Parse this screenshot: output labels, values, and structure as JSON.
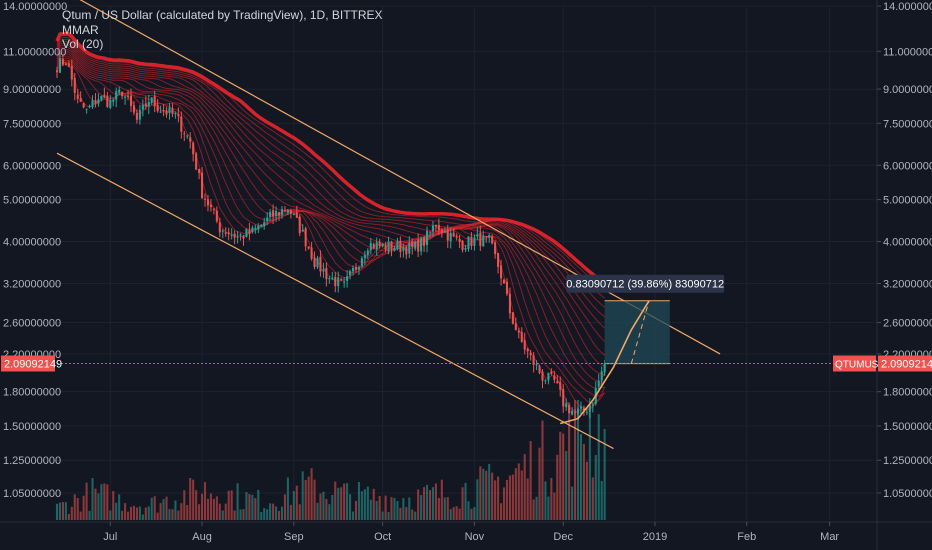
{
  "header": {
    "title": "Qtum / US Dollar (calculated by TradingView), 1D, BITTREX",
    "indicator_1": "MMAR",
    "indicator_2": "Vol (20)"
  },
  "colors": {
    "background": "#131722",
    "up_candle": "#26a69a",
    "down_candle": "#ef5350",
    "ribbon": "#e0242c",
    "trendline": "#f0a868",
    "measure_box": "#1f4a56",
    "price_line": "#ef5350",
    "label_bg": "#2a3347"
  },
  "chart_data": {
    "type": "candlestick",
    "symbol": "QTUMUSD",
    "last_price": "2.09092149",
    "y_scale": "log",
    "ylim": [
      0.9,
      14.0
    ],
    "y_ticks": [
      "14.00000000",
      "11.00000000",
      "9.00000000",
      "7.50000000",
      "6.00000000",
      "5.00000000",
      "4.00000000",
      "3.20000000",
      "2.60000000",
      "2.20000000",
      "1.80000000",
      "1.50000000",
      "1.25000000",
      "1.05000000"
    ],
    "y_tick_values": [
      14,
      11,
      9,
      7.5,
      6,
      5,
      4,
      3.2,
      2.6,
      2.2,
      1.8,
      1.5,
      1.25,
      1.05
    ],
    "x_labels": [
      "Jul",
      "Aug",
      "Sep",
      "Oct",
      "Nov",
      "Dec",
      "2019",
      "Feb",
      "Mar"
    ],
    "x_label_days": [
      18,
      49,
      80,
      110,
      141,
      171,
      202,
      233,
      261
    ],
    "x_range_days": [
      0,
      277
    ],
    "close_keypoints": [
      [
        0,
        10.2
      ],
      [
        3,
        10.5
      ],
      [
        7,
        8.4
      ],
      [
        10,
        8.0
      ],
      [
        14,
        8.6
      ],
      [
        18,
        8.4
      ],
      [
        22,
        8.9
      ],
      [
        27,
        7.6
      ],
      [
        31,
        8.5
      ],
      [
        35,
        8.1
      ],
      [
        40,
        7.8
      ],
      [
        45,
        6.8
      ],
      [
        49,
        5.2
      ],
      [
        55,
        4.3
      ],
      [
        61,
        4.1
      ],
      [
        66,
        4.2
      ],
      [
        73,
        4.6
      ],
      [
        78,
        4.8
      ],
      [
        82,
        4.3
      ],
      [
        87,
        3.6
      ],
      [
        92,
        3.3
      ],
      [
        97,
        3.15
      ],
      [
        101,
        3.5
      ],
      [
        105,
        3.95
      ],
      [
        110,
        3.9
      ],
      [
        115,
        3.9
      ],
      [
        120,
        3.85
      ],
      [
        124,
        4.0
      ],
      [
        128,
        4.4
      ],
      [
        132,
        4.15
      ],
      [
        137,
        3.95
      ],
      [
        142,
        4.05
      ],
      [
        146,
        4.0
      ],
      [
        150,
        3.35
      ],
      [
        153,
        2.75
      ],
      [
        156,
        2.4
      ],
      [
        160,
        2.15
      ],
      [
        164,
        1.95
      ],
      [
        168,
        1.9
      ],
      [
        171,
        1.7
      ],
      [
        175,
        1.6
      ],
      [
        178,
        1.62
      ],
      [
        181,
        1.72
      ],
      [
        185,
        2.09
      ]
    ],
    "volume_keypoints": [
      [
        0,
        0.1
      ],
      [
        12,
        0.22
      ],
      [
        30,
        0.12
      ],
      [
        50,
        0.25
      ],
      [
        70,
        0.15
      ],
      [
        85,
        0.28
      ],
      [
        100,
        0.2
      ],
      [
        120,
        0.18
      ],
      [
        140,
        0.26
      ],
      [
        150,
        0.32
      ],
      [
        160,
        0.45
      ],
      [
        170,
        0.6
      ],
      [
        178,
        0.8
      ],
      [
        185,
        0.7
      ]
    ],
    "measure": {
      "start_day": 185,
      "end_day": 207,
      "start_price": 2.09,
      "end_price": 2.92,
      "label": "0.83090712 (39.86%) 83090712"
    },
    "channel": {
      "upper": [
        [
          0,
          15.5
        ],
        [
          224,
          2.2
        ]
      ],
      "lower": [
        [
          0,
          6.4
        ],
        [
          188,
          1.33
        ]
      ]
    },
    "projection_points": [
      [
        170,
        1.52
      ],
      [
        176,
        1.56
      ],
      [
        181,
        1.72
      ],
      [
        188,
        2.05
      ],
      [
        194,
        2.5
      ],
      [
        200,
        2.92
      ]
    ]
  }
}
